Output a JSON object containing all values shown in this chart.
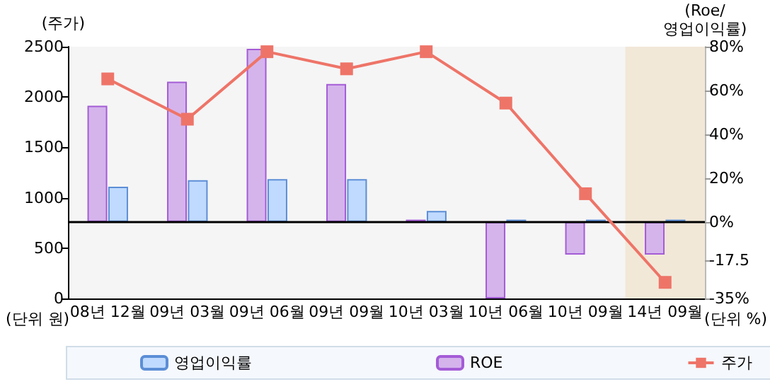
{
  "chart_data": {
    "type": "bar",
    "ylabel": "(주가)",
    "y2label": "(Roe/\n영업이익률)",
    "annotations": [
      "(단위 원)",
      "(단위 %)"
    ],
    "categories": [
      "08년 12월",
      "09년 03월",
      "09년 06월",
      "09년 09월",
      "10년 03월",
      "10년 06월",
      "10년 09월",
      "14년 09월"
    ],
    "series": [
      {
        "name": "영업이익률",
        "color": "#c0daff",
        "axis": "y2",
        "values": [
          16,
          19,
          19.5,
          19.5,
          5,
          1,
          1,
          1
        ]
      },
      {
        "name": "ROE",
        "color": "#d5b4ec",
        "axis": "y2",
        "values": [
          53,
          64,
          79,
          63,
          1,
          -35,
          -15,
          -15
        ]
      },
      {
        "name": "주가",
        "type": "line",
        "color": "#ee7468",
        "marker": "square",
        "values": [
          2180,
          1780,
          2450,
          2280,
          2450,
          1940,
          1040,
          160
        ]
      }
    ],
    "ylim": [
      0,
      2500
    ],
    "yticks": [
      0,
      500,
      1000,
      1500,
      2000,
      2500
    ],
    "y2lim": [
      -35,
      80
    ],
    "y2ticks": [
      {
        "value": -35,
        "label": "-35%"
      },
      {
        "value": -17.5,
        "label": "-17.5"
      },
      {
        "value": 0,
        "label": "0%"
      },
      {
        "value": 20,
        "label": "20%"
      },
      {
        "value": 40,
        "label": "40%"
      },
      {
        "value": 60,
        "label": "60%"
      },
      {
        "value": 80,
        "label": "80%"
      }
    ],
    "ref_lines": [
      {
        "axis": "y2",
        "value": 0,
        "color": "#000000"
      }
    ],
    "bands": [
      {
        "axis": "x",
        "from": "14년 09월",
        "to": "14년 09월",
        "color": "#f2e8d8"
      }
    ],
    "grid": false,
    "legend": "bottom"
  }
}
